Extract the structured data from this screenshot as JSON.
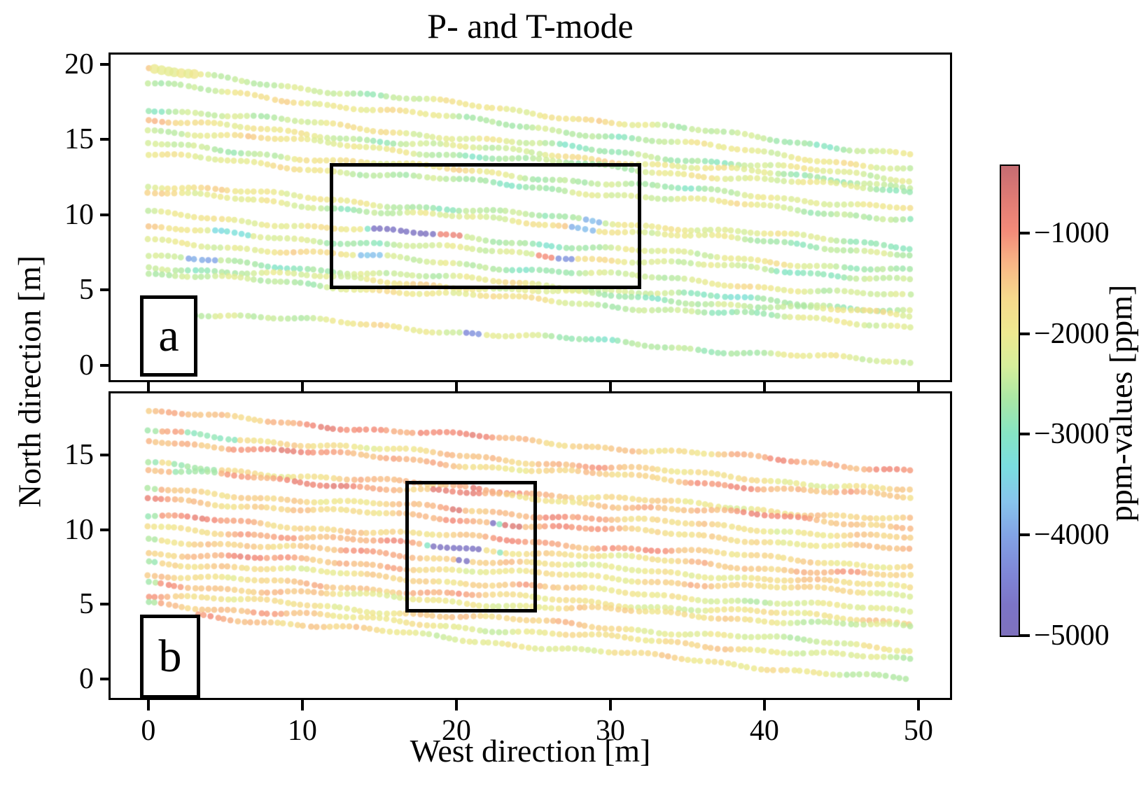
{
  "figure": {
    "title": "P- and T-mode"
  },
  "chart_data": {
    "type": "scatter",
    "title": "P- and T-mode",
    "xlabel": "West direction [m]",
    "ylabel": "North direction [m]",
    "xlim": [
      -2.45,
      52.05
    ],
    "xticks": [
      0,
      10,
      20,
      30,
      40,
      50
    ],
    "point_radius_m": 0.2,
    "point_step_m": 0.43,
    "colorbar": {
      "label": "ppm-values [ppm]",
      "vmin": -5000,
      "vmax": -333,
      "ticks": [
        -1000,
        -2000,
        -3000,
        -4000,
        -5000
      ],
      "stops": [
        [
          0.0,
          "#7e71bd"
        ],
        [
          0.065,
          "#7c74c7"
        ],
        [
          0.13,
          "#7f86d7"
        ],
        [
          0.21,
          "#82a2e5"
        ],
        [
          0.285,
          "#87c4ec"
        ],
        [
          0.36,
          "#7adee0"
        ],
        [
          0.43,
          "#86e5c4"
        ],
        [
          0.5,
          "#a8e7a6"
        ],
        [
          0.575,
          "#d7ee9b"
        ],
        [
          0.645,
          "#eee990"
        ],
        [
          0.72,
          "#f6d98c"
        ],
        [
          0.79,
          "#f8b786"
        ],
        [
          0.86,
          "#f48b79"
        ],
        [
          0.93,
          "#e07b74"
        ],
        [
          1.0,
          "#c56c72"
        ]
      ]
    },
    "track_fields": [
      "x0",
      "y0",
      "x1",
      "y1",
      "base_ppm",
      "seed"
    ],
    "panels": [
      {
        "id": "a",
        "label": "a",
        "ylim": [
          -0.98,
          20.65
        ],
        "yticks": [
          0,
          5,
          10,
          15,
          20
        ],
        "highlight_rect": {
          "x": [
            12.0,
            31.8
          ],
          "y": [
            5.3,
            13.2
          ]
        },
        "noise": {
          "a1": 380,
          "a2": 250,
          "a3": 140,
          "jitter": 160,
          "clip": [
            -3550,
            -950
          ],
          "trend_hi": -5,
          "trend_lo": -5
        },
        "tracks": [
          [
            0,
            19.6,
            49.7,
            14.0,
            -2100,
            11
          ],
          [
            0,
            18.7,
            49.7,
            13.0,
            -2150,
            12
          ],
          [
            0,
            17.1,
            49.7,
            12.3,
            -2250,
            13
          ],
          [
            0,
            16.3,
            49.7,
            11.9,
            -2050,
            14
          ],
          [
            0,
            15.7,
            49.7,
            11.5,
            -2200,
            15
          ],
          [
            0,
            14.7,
            49.7,
            10.4,
            -2150,
            16
          ],
          [
            0,
            14.0,
            49.7,
            9.7,
            -2250,
            17
          ],
          [
            0,
            12.0,
            49.7,
            7.9,
            -2200,
            18
          ],
          [
            0,
            11.5,
            49.7,
            7.4,
            -2050,
            19
          ],
          [
            0,
            10.1,
            49.7,
            6.2,
            -2250,
            20
          ],
          [
            0,
            9.1,
            49.7,
            5.7,
            -2150,
            21
          ],
          [
            0,
            8.3,
            49.7,
            4.5,
            -2200,
            22
          ],
          [
            0,
            7.2,
            49.7,
            3.6,
            -2300,
            23
          ],
          [
            0,
            6.6,
            49.7,
            3.3,
            -2150,
            24
          ],
          [
            0,
            6.1,
            49.7,
            2.6,
            -2100,
            25
          ],
          [
            3.0,
            3.5,
            49.6,
            0.1,
            -2250,
            26
          ]
        ],
        "anomalies": [
          {
            "x": [
              14.5,
              18.8
            ],
            "y": [
              8.5,
              9.3
            ],
            "ppm": -4850
          },
          {
            "x": [
              13.9,
              14.5
            ],
            "y": [
              8.5,
              9.3
            ],
            "ppm": -3100
          },
          {
            "x": [
              18.8,
              20.3
            ],
            "y": [
              8.3,
              9.1
            ],
            "ppm": -900
          },
          {
            "x": [
              13.3,
              15.3
            ],
            "y": [
              7.0,
              7.6
            ],
            "ppm": -3600
          },
          {
            "x": [
              24.9,
              26.2
            ],
            "y": [
              7.0,
              7.8
            ],
            "ppm": -900
          },
          {
            "x": [
              26.2,
              27.7
            ],
            "y": [
              6.9,
              7.7
            ],
            "ppm": -4300
          },
          {
            "x": [
              27.5,
              29.3
            ],
            "y": [
              8.9,
              9.7
            ],
            "ppm": -3800
          },
          {
            "x": [
              2.2,
              4.6
            ],
            "y": [
              6.7,
              7.4
            ],
            "ppm": -3900
          },
          {
            "x": [
              4.3,
              6.8
            ],
            "y": [
              8.3,
              9.0
            ],
            "ppm": -3300
          },
          {
            "x": [
              20.6,
              21.8
            ],
            "y": [
              1.8,
              2.7
            ],
            "ppm": -4300
          },
          {
            "x": [
              0.2,
              3.4
            ],
            "y": [
              19.1,
              20.0
            ],
            "ppm": -2050,
            "r": 7
          }
        ]
      },
      {
        "id": "b",
        "label": "b",
        "ylim": [
          -1.27,
          19.15
        ],
        "yticks": [
          0,
          5,
          10,
          15
        ],
        "highlight_rect": {
          "x": [
            16.9,
            25.0
          ],
          "y": [
            4.7,
            13.05
          ]
        },
        "noise": {
          "a1": 330,
          "a2": 220,
          "a3": 130,
          "jitter": 150,
          "clip": [
            -2600,
            -650
          ],
          "trend_hi": -5,
          "trend_lo": -13
        },
        "edge_accent": {
          "x_max": 0.8,
          "ppm": -2500,
          "every": 2
        },
        "tracks": [
          [
            0,
            17.9,
            49.7,
            14.0,
            -1200,
            31
          ],
          [
            0,
            16.6,
            49.7,
            12.6,
            -1500,
            32
          ],
          [
            0,
            16.0,
            49.7,
            12.1,
            -1300,
            33
          ],
          [
            0,
            14.4,
            49.7,
            10.6,
            -1450,
            34
          ],
          [
            0,
            14.0,
            49.7,
            10.2,
            -1250,
            35
          ],
          [
            0,
            12.7,
            49.7,
            9.4,
            -1400,
            36
          ],
          [
            0,
            12.1,
            49.7,
            8.6,
            -1350,
            37
          ],
          [
            0,
            10.9,
            49.7,
            7.5,
            -1300,
            38
          ],
          [
            0,
            10.2,
            49.7,
            6.8,
            -1450,
            39
          ],
          [
            0,
            9.4,
            49.7,
            6.1,
            -1400,
            40
          ],
          [
            0,
            8.5,
            49.7,
            5.6,
            -1350,
            41
          ],
          [
            0,
            7.9,
            49.7,
            4.5,
            -1500,
            42
          ],
          [
            0,
            7.0,
            49.7,
            3.8,
            -1400,
            43
          ],
          [
            0,
            6.4,
            49.7,
            3.4,
            -1550,
            44
          ],
          [
            0,
            5.7,
            49.7,
            2.0,
            -1500,
            45
          ],
          [
            0,
            5.1,
            49.7,
            1.2,
            -1550,
            46
          ],
          [
            3.2,
            4.3,
            49.6,
            -0.1,
            -1600,
            47
          ]
        ],
        "anomalies": [
          {
            "x": [
              20.4,
              22.4
            ],
            "y": [
              9.7,
              10.45
            ],
            "ppm": -4850
          },
          {
            "x": [
              18.4,
              21.6
            ],
            "y": [
              8.65,
              9.35
            ],
            "ppm": -4850
          },
          {
            "x": [
              20.0,
              22.7
            ],
            "y": [
              7.85,
              8.5
            ],
            "ppm": -4850
          },
          {
            "x": [
              19.8,
              20.4
            ],
            "y": [
              9.7,
              10.45
            ],
            "ppm": -3100
          },
          {
            "x": [
              22.4,
              23.0
            ],
            "y": [
              9.7,
              10.45
            ],
            "ppm": -3000
          },
          {
            "x": [
              17.8,
              18.4
            ],
            "y": [
              8.65,
              9.35
            ],
            "ppm": -3100
          },
          {
            "x": [
              21.6,
              22.1
            ],
            "y": [
              8.65,
              9.35
            ],
            "ppm": -2950
          },
          {
            "x": [
              22.7,
              23.2
            ],
            "y": [
              7.85,
              8.5
            ],
            "ppm": -2900
          },
          {
            "x": [
              23.0,
              24.4
            ],
            "y": [
              9.7,
              10.5
            ],
            "ppm": -600
          },
          {
            "x": [
              19.2,
              20.4
            ],
            "y": [
              10.7,
              11.45
            ],
            "ppm": -650
          },
          {
            "x": [
              18.3,
              21.6
            ],
            "y": [
              12.1,
              12.9
            ],
            "ppm": -800
          },
          {
            "x": [
              2.3,
              5.8
            ],
            "y": [
              15.8,
              16.6
            ],
            "ppm": -2900
          },
          {
            "x": [
              1.5,
              4.3
            ],
            "y": [
              13.7,
              14.5
            ],
            "ppm": -2700
          }
        ]
      }
    ]
  }
}
